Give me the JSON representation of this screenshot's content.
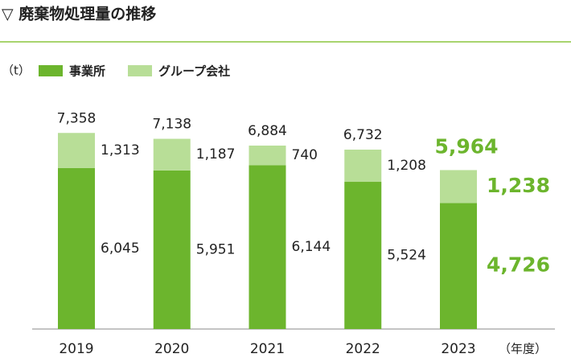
{
  "chart_data": {
    "type": "stacked_bar",
    "title": "▽ 廃棄物処理量の推移",
    "unit_label": "（t）",
    "x_unit_label": "（年度）",
    "categories": [
      "2019",
      "2020",
      "2021",
      "2022",
      "2023"
    ],
    "series": [
      {
        "name": "事業所",
        "color": "#6cb52d",
        "values": [
          6045,
          5951,
          6144,
          5524,
          4726
        ],
        "value_labels": [
          "6,045",
          "5,951",
          "6,144",
          "5,524",
          "4,726"
        ]
      },
      {
        "name": "グループ会社",
        "color": "#b8de97",
        "values": [
          1313,
          1187,
          740,
          1208,
          1238
        ],
        "value_labels": [
          "1,313",
          "1,187",
          "740",
          "1,208",
          "1,238"
        ]
      }
    ],
    "totals": [
      7358,
      7138,
      6884,
      6732,
      5964
    ],
    "total_labels": [
      "7,358",
      "7,138",
      "6,884",
      "6,732",
      "5,964"
    ],
    "ylim": [
      0,
      8000
    ]
  }
}
